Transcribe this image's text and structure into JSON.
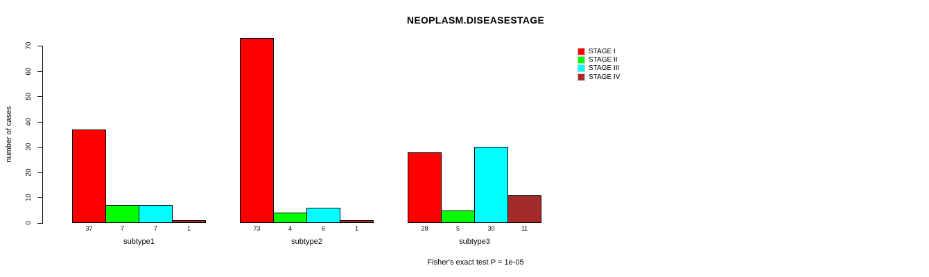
{
  "chart_data": {
    "type": "bar",
    "title": "NEOPLASM.DISEASESTAGE",
    "ylabel": "number of cases",
    "xlabel": "",
    "caption": "Fisher's exact test P = 1e-05",
    "categories": [
      "subtype1",
      "subtype2",
      "subtype3"
    ],
    "series": [
      {
        "name": "STAGE I",
        "color": "#FF0000",
        "values": [
          37,
          73,
          28
        ]
      },
      {
        "name": "STAGE II",
        "color": "#00FF00",
        "values": [
          7,
          4,
          5
        ]
      },
      {
        "name": "STAGE III",
        "color": "#00FFFF",
        "values": [
          7,
          6,
          30
        ]
      },
      {
        "name": "STAGE IV",
        "color": "#A52A2A",
        "values": [
          1,
          1,
          11
        ]
      }
    ],
    "ylim": [
      0,
      70
    ],
    "yticks": [
      0,
      10,
      20,
      30,
      40,
      50,
      60,
      70
    ],
    "bar_value_labels": true,
    "grid": false,
    "legend_position": "right-outside",
    "background": "#ffffff",
    "axis_color": "#000000"
  }
}
